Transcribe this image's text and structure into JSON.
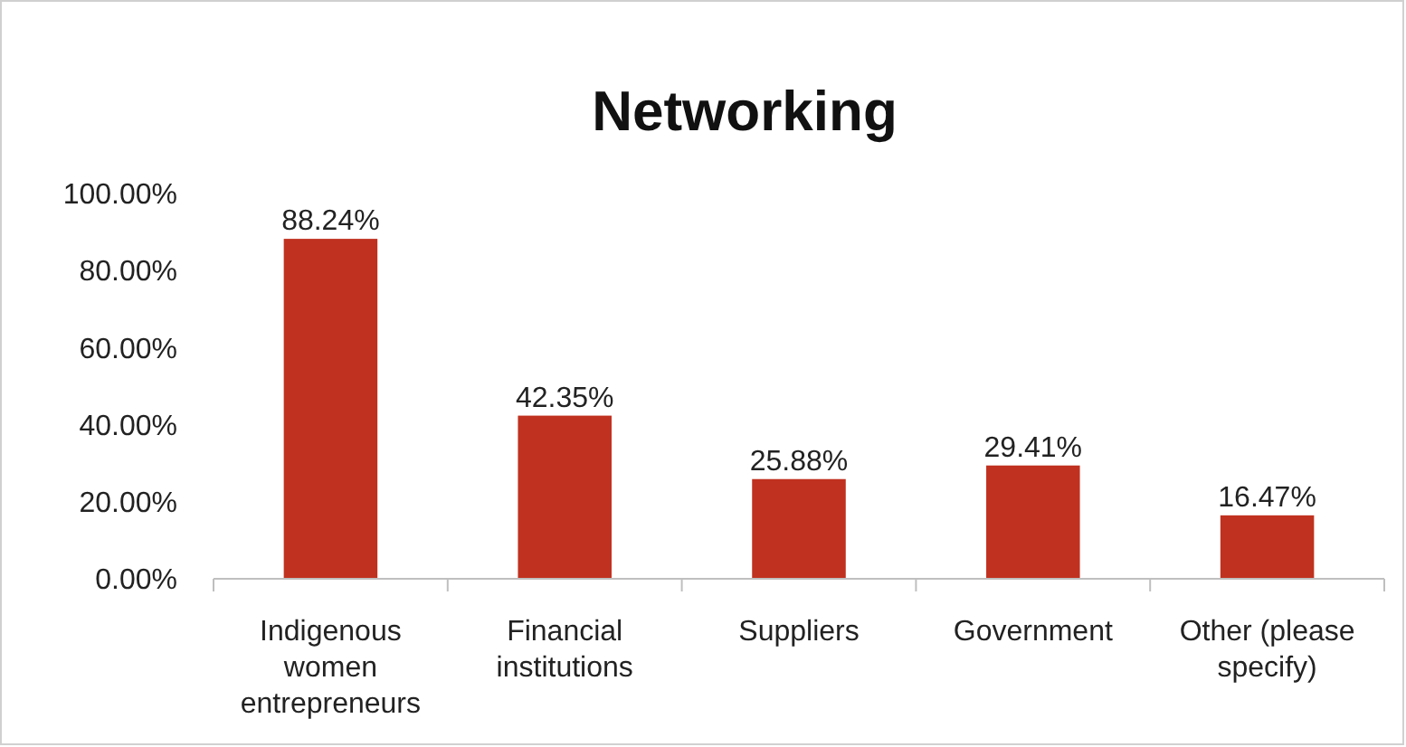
{
  "chart_data": {
    "type": "bar",
    "title": "Networking",
    "categories": [
      "Indigenous women entrepreneurs",
      "Financial institutions",
      "Suppliers",
      "Government",
      "Other (please specify)"
    ],
    "values": [
      88.24,
      42.35,
      25.88,
      29.41,
      16.47
    ],
    "value_labels": [
      "88.24%",
      "42.35%",
      "25.88%",
      "29.41%",
      "16.47%"
    ],
    "color": "#c0311f",
    "ylim": [
      0,
      100
    ],
    "yticks": [
      {
        "value": 0,
        "label": "0.00%"
      },
      {
        "value": 20,
        "label": "20.00%"
      },
      {
        "value": 40,
        "label": "40.00%"
      },
      {
        "value": 60,
        "label": "60.00%"
      },
      {
        "value": 80,
        "label": "80.00%"
      },
      {
        "value": 100,
        "label": "100.00%"
      }
    ],
    "grid": false
  }
}
